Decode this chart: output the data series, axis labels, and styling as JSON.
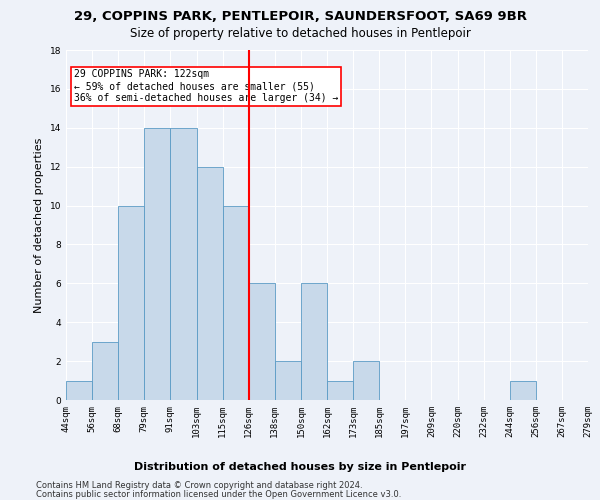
{
  "title1": "29, COPPINS PARK, PENTLEPOIR, SAUNDERSFOOT, SA69 9BR",
  "title2": "Size of property relative to detached houses in Pentlepoir",
  "xlabel": "Distribution of detached houses by size in Pentlepoir",
  "ylabel": "Number of detached properties",
  "bin_counts": [
    1,
    3,
    10,
    14,
    14,
    12,
    10,
    6,
    2,
    6,
    1,
    2,
    0,
    0,
    0,
    0,
    0,
    1,
    0,
    0
  ],
  "tick_labels": [
    "44sqm",
    "56sqm",
    "68sqm",
    "79sqm",
    "91sqm",
    "103sqm",
    "115sqm",
    "126sqm",
    "138sqm",
    "150sqm",
    "162sqm",
    "173sqm",
    "185sqm",
    "197sqm",
    "209sqm",
    "220sqm",
    "232sqm",
    "244sqm",
    "256sqm",
    "267sqm",
    "279sqm"
  ],
  "bar_color": "#c8d9ea",
  "bar_edge_color": "#5a9ac5",
  "vline_bin": 7,
  "vline_color": "red",
  "annotation_text": "29 COPPINS PARK: 122sqm\n← 59% of detached houses are smaller (55)\n36% of semi-detached houses are larger (34) →",
  "annotation_box_color": "white",
  "annotation_box_edge_color": "red",
  "ylim": [
    0,
    18
  ],
  "yticks": [
    0,
    2,
    4,
    6,
    8,
    10,
    12,
    14,
    16,
    18
  ],
  "footer1": "Contains HM Land Registry data © Crown copyright and database right 2024.",
  "footer2": "Contains public sector information licensed under the Open Government Licence v3.0.",
  "bg_color": "#eef2f9",
  "grid_color": "#ffffff",
  "title1_fontsize": 9.5,
  "title2_fontsize": 8.5,
  "xlabel_fontsize": 8,
  "ylabel_fontsize": 8,
  "tick_fontsize": 6.5,
  "footer_fontsize": 6,
  "annot_fontsize": 7
}
